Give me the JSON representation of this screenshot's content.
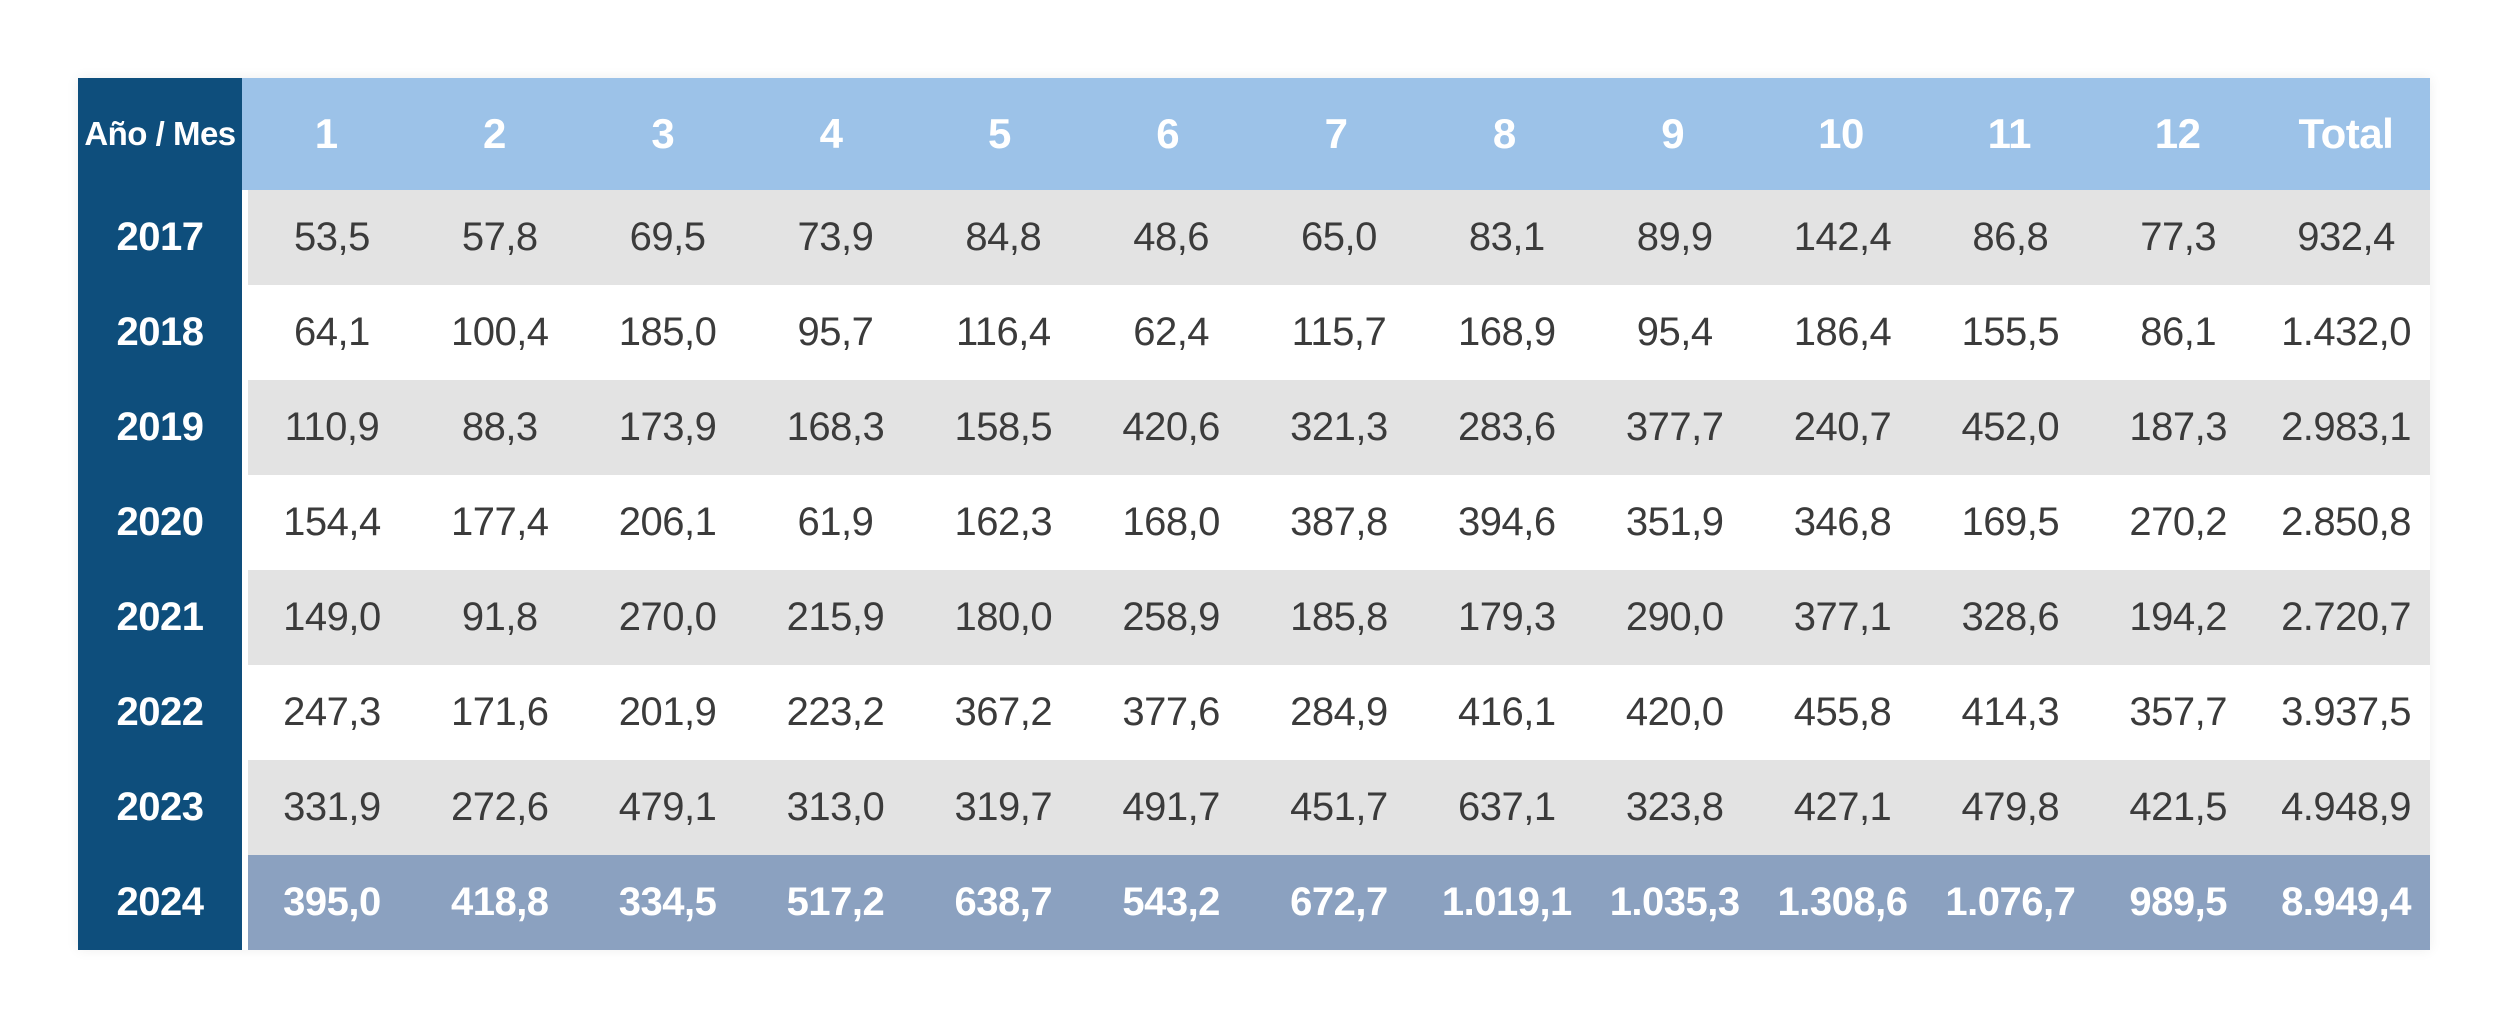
{
  "chart_data": {
    "type": "table",
    "corner_header": "Año / Mes",
    "month_headers": [
      "1",
      "2",
      "3",
      "4",
      "5",
      "6",
      "7",
      "8",
      "9",
      "10",
      "11",
      "12"
    ],
    "total_header": "Total",
    "rows": [
      {
        "year": "2017",
        "values": [
          "53,5",
          "57,8",
          "69,5",
          "73,9",
          "84,8",
          "48,6",
          "65,0",
          "83,1",
          "89,9",
          "142,4",
          "86,8",
          "77,3"
        ],
        "total": "932,4",
        "highlight": false
      },
      {
        "year": "2018",
        "values": [
          "64,1",
          "100,4",
          "185,0",
          "95,7",
          "116,4",
          "62,4",
          "115,7",
          "168,9",
          "95,4",
          "186,4",
          "155,5",
          "86,1"
        ],
        "total": "1.432,0",
        "highlight": false
      },
      {
        "year": "2019",
        "values": [
          "110,9",
          "88,3",
          "173,9",
          "168,3",
          "158,5",
          "420,6",
          "321,3",
          "283,6",
          "377,7",
          "240,7",
          "452,0",
          "187,3"
        ],
        "total": "2.983,1",
        "highlight": false
      },
      {
        "year": "2020",
        "values": [
          "154,4",
          "177,4",
          "206,1",
          "61,9",
          "162,3",
          "168,0",
          "387,8",
          "394,6",
          "351,9",
          "346,8",
          "169,5",
          "270,2"
        ],
        "total": "2.850,8",
        "highlight": false
      },
      {
        "year": "2021",
        "values": [
          "149,0",
          "91,8",
          "270,0",
          "215,9",
          "180,0",
          "258,9",
          "185,8",
          "179,3",
          "290,0",
          "377,1",
          "328,6",
          "194,2"
        ],
        "total": "2.720,7",
        "highlight": false
      },
      {
        "year": "2022",
        "values": [
          "247,3",
          "171,6",
          "201,9",
          "223,2",
          "367,2",
          "377,6",
          "284,9",
          "416,1",
          "420,0",
          "455,8",
          "414,3",
          "357,7"
        ],
        "total": "3.937,5",
        "highlight": false
      },
      {
        "year": "2023",
        "values": [
          "331,9",
          "272,6",
          "479,1",
          "313,0",
          "319,7",
          "491,7",
          "451,7",
          "637,1",
          "323,8",
          "427,1",
          "479,8",
          "421,5"
        ],
        "total": "4.948,9",
        "highlight": false
      },
      {
        "year": "2024",
        "values": [
          "395,0",
          "418,8",
          "334,5",
          "517,2",
          "638,7",
          "543,2",
          "672,7",
          "1.019,1",
          "1.035,3",
          "1.308,6",
          "1.076,7",
          "989,5"
        ],
        "total": "8.949,4",
        "highlight": true
      }
    ]
  },
  "colors": {
    "year_column_blue": "#0E4E7C",
    "header_light_blue": "#9CC2E8",
    "row_gray": "#E3E3E3",
    "row_white": "#FFFFFF",
    "highlight_row_blue": "#8BA1C0",
    "value_text": "#3B3B3B",
    "header_text": "#FFFFFF"
  }
}
